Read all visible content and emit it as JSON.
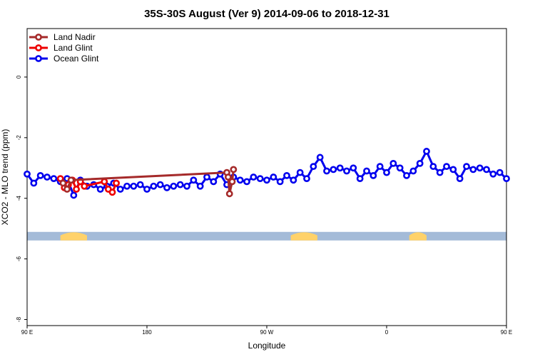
{
  "chart_data": {
    "type": "line",
    "title": "35S-30S August (Ver 9)   2014-09-06 to 2018-12-31",
    "xlabel": "Longitude",
    "ylabel": "XCO2 - MLO trend (ppm)",
    "xlim": [
      90,
      450
    ],
    "ylim": [
      -8.2,
      1.6
    ],
    "x_ticks": [
      {
        "value": 90,
        "label": "90 E"
      },
      {
        "value": 180,
        "label": "180"
      },
      {
        "value": 270,
        "label": "90 W"
      },
      {
        "value": 360,
        "label": "0"
      },
      {
        "value": 450,
        "label": "90 E"
      },
      {
        "value": 540,
        "label": "180"
      }
    ],
    "y_ticks": [
      {
        "value": 0,
        "label": "0"
      },
      {
        "value": -2,
        "label": "-2"
      },
      {
        "value": -4,
        "label": "-4"
      },
      {
        "value": -6,
        "label": "-6"
      },
      {
        "value": -8,
        "label": "-8"
      }
    ],
    "legend_position": "top-left",
    "land_strip": {
      "y": -5.25,
      "ocean_color": "#a4bbd8",
      "land_color": "#ffd26a",
      "land_ranges": [
        [
          115,
          135
        ],
        [
          288,
          308
        ],
        [
          377,
          390
        ],
        [
          476,
          511
        ]
      ]
    },
    "series": [
      {
        "name": "Land Nadir",
        "color": "#a52a2a",
        "x": [
          117,
          120,
          123,
          240,
          241,
          242,
          244,
          245
        ],
        "y": [
          -3.5,
          -3.7,
          -3.4,
          -3.15,
          -3.3,
          -3.85,
          -3.45,
          -3.05
        ]
      },
      {
        "name": "Land Glint",
        "color": "#ee0000",
        "x": [
          115,
          118,
          121,
          124,
          127,
          130,
          133,
          148,
          151,
          154,
          157
        ],
        "y": [
          -3.35,
          -3.65,
          -3.55,
          -3.4,
          -3.7,
          -3.45,
          -3.6,
          -3.45,
          -3.7,
          -3.8,
          -3.5
        ]
      },
      {
        "name": "Ocean Glint",
        "color": "#0000ee",
        "x": [
          90,
          95,
          100,
          105,
          110,
          115,
          120,
          125,
          130,
          135,
          140,
          145,
          150,
          155,
          160,
          165,
          170,
          175,
          180,
          185,
          190,
          195,
          200,
          205,
          210,
          215,
          220,
          225,
          230,
          235,
          240,
          245,
          250,
          255,
          260,
          265,
          270,
          275,
          280,
          285,
          290,
          295,
          300,
          305,
          310,
          315,
          320,
          325,
          330,
          335,
          340,
          345,
          350,
          355,
          360,
          365,
          370,
          375,
          380,
          385,
          390,
          395,
          400,
          405,
          410,
          415,
          420,
          425,
          430,
          435,
          440,
          445,
          450
        ],
        "y": [
          -3.2,
          -3.5,
          -3.25,
          -3.3,
          -3.35,
          -3.45,
          -3.35,
          -3.9,
          -3.4,
          -3.6,
          -3.55,
          -3.7,
          -3.6,
          -3.5,
          -3.7,
          -3.6,
          -3.6,
          -3.55,
          -3.7,
          -3.6,
          -3.55,
          -3.65,
          -3.6,
          -3.55,
          -3.6,
          -3.4,
          -3.6,
          -3.3,
          -3.45,
          -3.2,
          -3.55,
          -3.3,
          -3.4,
          -3.45,
          -3.3,
          -3.35,
          -3.4,
          -3.3,
          -3.45,
          -3.25,
          -3.4,
          -3.15,
          -3.35,
          -2.95,
          -2.65,
          -3.1,
          -3.05,
          -3.0,
          -3.1,
          -3.0,
          -3.35,
          -3.1,
          -3.25,
          -2.95,
          -3.15,
          -2.85,
          -3.0,
          -3.25,
          -3.1,
          -2.85,
          -2.45,
          -2.95,
          -3.15,
          -2.95,
          -3.05,
          -3.35,
          -2.95,
          -3.05,
          -3.0,
          -3.05,
          -3.2,
          -3.15,
          -3.35
        ]
      }
    ]
  }
}
